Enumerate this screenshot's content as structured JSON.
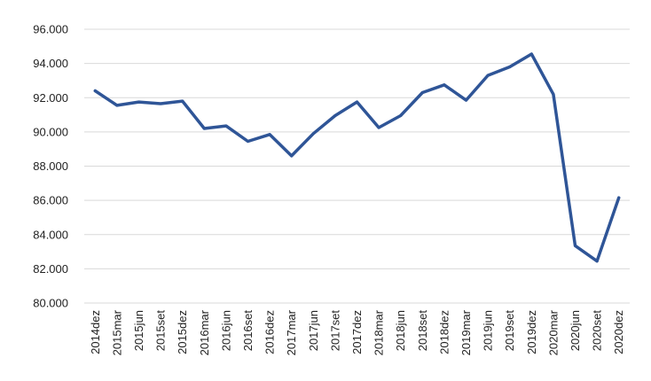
{
  "chart_data": {
    "type": "line",
    "title": "",
    "xlabel": "",
    "ylabel": "",
    "categories": [
      "2014dez",
      "2015mar",
      "2015jun",
      "2015set",
      "2015dez",
      "2016mar",
      "2016jun",
      "2016set",
      "2016dez",
      "2017mar",
      "2017jun",
      "2017set",
      "2017dez",
      "2018mar",
      "2018jun",
      "2018set",
      "2018dez",
      "2019mar",
      "2019jun",
      "2019set",
      "2019dez",
      "2020mar",
      "2020jun",
      "2020set",
      "2020dez"
    ],
    "ylim": [
      80000,
      96000
    ],
    "yticks": [
      80000,
      82000,
      84000,
      86000,
      88000,
      90000,
      92000,
      94000,
      96000
    ],
    "ytick_labels": [
      "80.000",
      "82.000",
      "84.000",
      "86.000",
      "88.000",
      "90.000",
      "92.000",
      "94.000",
      "96.000"
    ],
    "grid": true,
    "legend": "none",
    "series": [
      {
        "color": "#2f5597",
        "values": [
          92400,
          91550,
          91750,
          91650,
          91800,
          90200,
          90350,
          89450,
          89850,
          88600,
          89900,
          90950,
          91750,
          90250,
          90950,
          92300,
          92750,
          91850,
          93300,
          93800,
          94550,
          92200,
          83350,
          82450,
          86150
        ]
      }
    ]
  }
}
